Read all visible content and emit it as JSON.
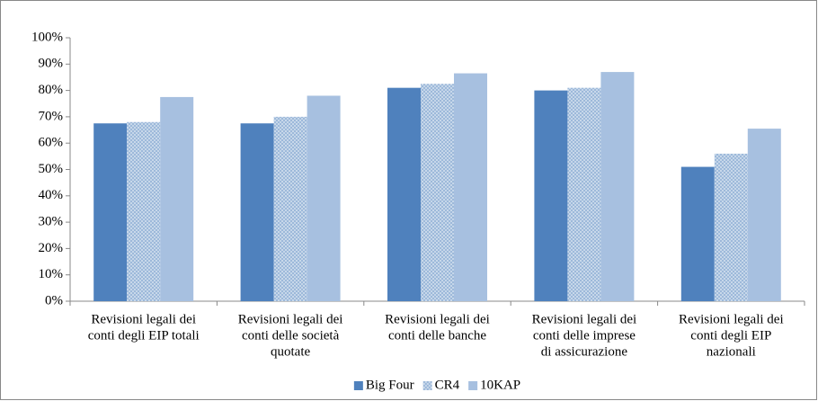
{
  "chart_data": {
    "type": "bar",
    "categories": [
      [
        "Revisioni legali dei",
        "conti degli EIP totali"
      ],
      [
        "Revisioni legali dei",
        "conti delle società",
        "quotate"
      ],
      [
        "Revisioni legali dei",
        "conti delle banche"
      ],
      [
        "Revisioni legali dei",
        "conti delle imprese",
        "di assicurazione"
      ],
      [
        "Revisioni legali dei",
        "conti degli EIP",
        "nazionali"
      ]
    ],
    "series": [
      {
        "name": "Big Four",
        "color": "#4f81bd",
        "values": [
          67.5,
          67.5,
          81,
          80,
          51
        ]
      },
      {
        "name": "CR4",
        "color": "#95b3d7",
        "pattern": "crosshatch",
        "values": [
          68,
          70,
          82.5,
          81,
          56
        ]
      },
      {
        "name": "10KAP",
        "color": "#a7c0e0",
        "values": [
          77.5,
          78,
          86.5,
          87,
          65.5
        ]
      }
    ],
    "ylim": [
      0,
      100
    ],
    "yticks": [
      {
        "value": 0,
        "label": "0%"
      },
      {
        "value": 10,
        "label": "10%"
      },
      {
        "value": 20,
        "label": "20%"
      },
      {
        "value": 30,
        "label": "30%"
      },
      {
        "value": 40,
        "label": "40%"
      },
      {
        "value": 50,
        "label": "50%"
      },
      {
        "value": 60,
        "label": "60%"
      },
      {
        "value": 70,
        "label": "70%"
      },
      {
        "value": 80,
        "label": "80%"
      },
      {
        "value": 90,
        "label": "90%"
      },
      {
        "value": 100,
        "label": "100%"
      }
    ],
    "grid": false,
    "legend": "bottom"
  }
}
